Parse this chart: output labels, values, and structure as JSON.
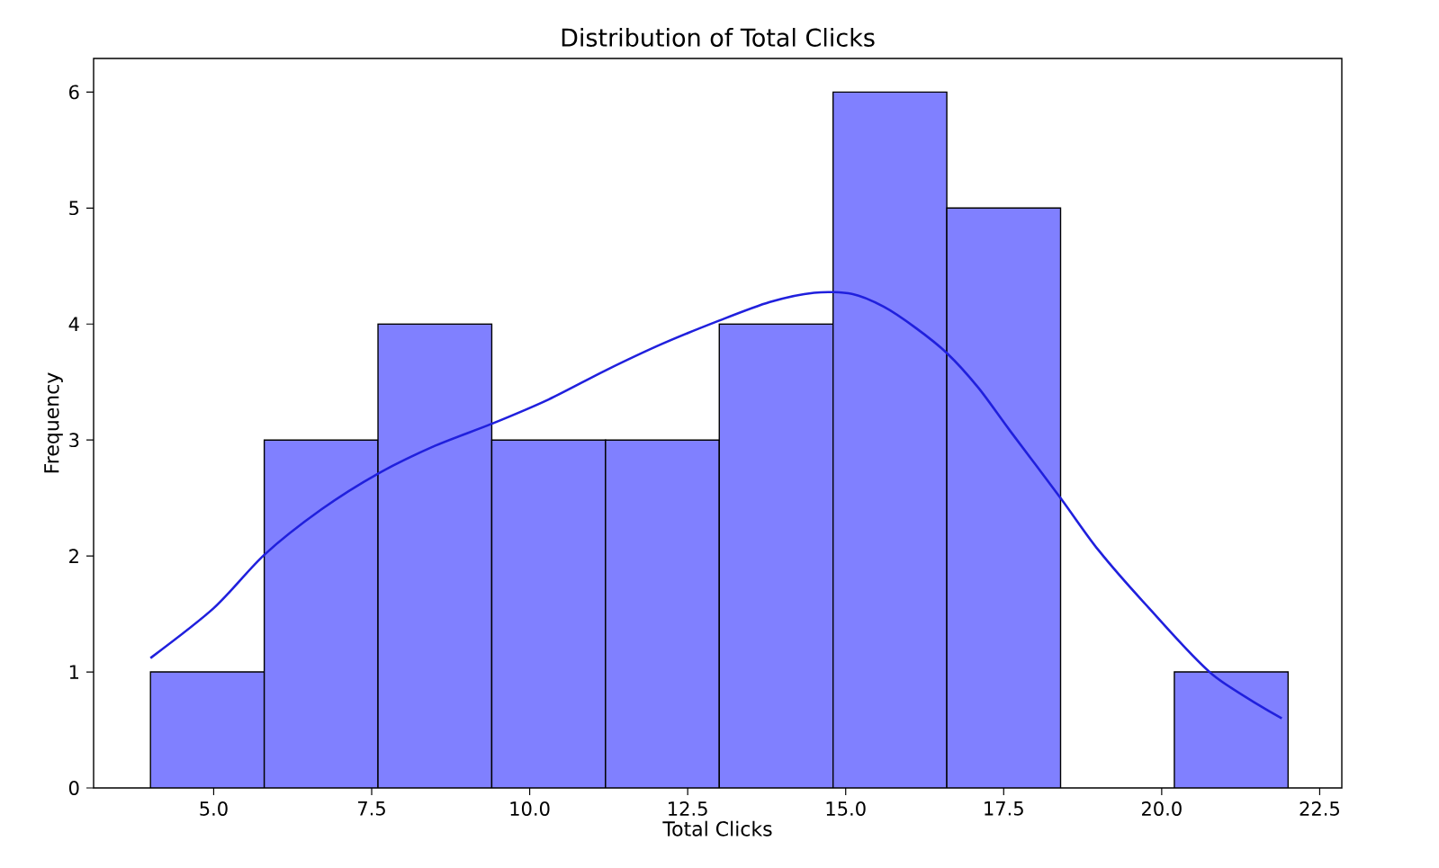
{
  "chart_data": {
    "type": "histogram",
    "title": "Distribution of Total Clicks",
    "xlabel": "Total Clicks",
    "ylabel": "Frequency",
    "bins": [
      4.0,
      5.8,
      7.6,
      9.4,
      11.2,
      13.0,
      14.8,
      16.6,
      18.4,
      20.2,
      22.0
    ],
    "values": [
      1,
      3,
      4,
      3,
      3,
      4,
      6,
      5,
      0,
      1
    ],
    "color": "#8080ff",
    "series": [
      {
        "type": "line",
        "color": "#2020dd",
        "x": [
          4.0,
          5.0,
          5.8,
          6.7,
          7.6,
          8.5,
          9.4,
          10.3,
          11.2,
          12.1,
          13.0,
          13.8,
          14.5,
          15.1,
          15.6,
          16.1,
          16.6,
          17.1,
          17.6,
          18.4,
          19.0,
          19.8,
          20.8,
          21.9
        ],
        "values": [
          1.12,
          1.55,
          2.01,
          2.4,
          2.71,
          2.95,
          3.14,
          3.35,
          3.6,
          3.83,
          4.03,
          4.19,
          4.27,
          4.26,
          4.15,
          3.97,
          3.75,
          3.45,
          3.08,
          2.5,
          2.05,
          1.55,
          0.98,
          0.6
        ]
      }
    ],
    "xlim": [
      3.1,
      22.85
    ],
    "ylim": [
      0,
      6.29
    ],
    "xticks": [
      {
        "value": 5,
        "label": "5.0"
      },
      {
        "value": 7.5,
        "label": "7.5"
      },
      {
        "value": 10,
        "label": "10.0"
      },
      {
        "value": 12.5,
        "label": "12.5"
      },
      {
        "value": 15,
        "label": "15.0"
      },
      {
        "value": 17.5,
        "label": "17.5"
      },
      {
        "value": 20,
        "label": "20.0"
      },
      {
        "value": 22.5,
        "label": "22.5"
      }
    ],
    "yticks": [
      0,
      1,
      2,
      3,
      4,
      5,
      6
    ]
  }
}
